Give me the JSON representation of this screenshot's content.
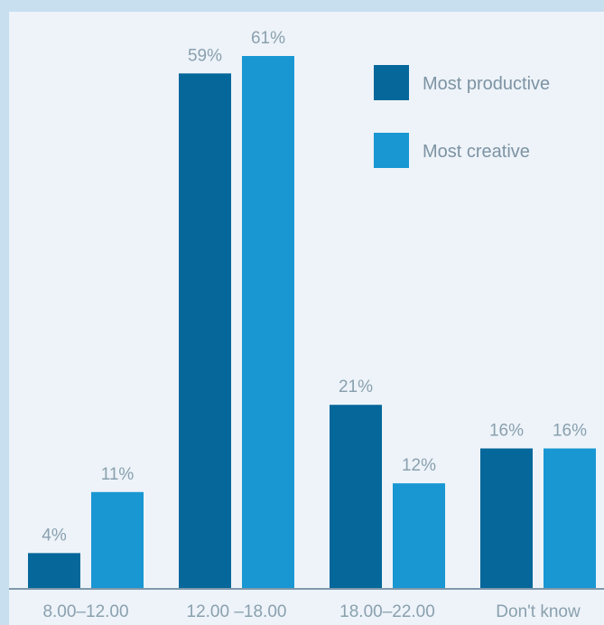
{
  "chart_data": {
    "type": "bar",
    "categories": [
      "8.00–12.00",
      "12.00 –18.00",
      "18.00–22.00",
      "Don't know"
    ],
    "series": [
      {
        "name": "Most productive",
        "values": [
          4,
          59,
          21,
          16
        ],
        "labels": [
          "4%",
          "59%",
          "21%",
          "16%"
        ],
        "color": "#05679a"
      },
      {
        "name": "Most creative",
        "values": [
          11,
          61,
          12,
          16
        ],
        "labels": [
          "11%",
          "61%",
          "12%",
          "16%"
        ],
        "color": "#1897d2"
      }
    ],
    "title": "",
    "xlabel": "",
    "ylabel": "",
    "ylim": [
      0,
      61
    ],
    "grid": false,
    "legend_position": "top-right",
    "colors": {
      "panel_background": "#edf3f9",
      "outer_background": "#c8dff0",
      "axis_line": "#7e98ad",
      "label_text": "#8aa0ae"
    }
  }
}
